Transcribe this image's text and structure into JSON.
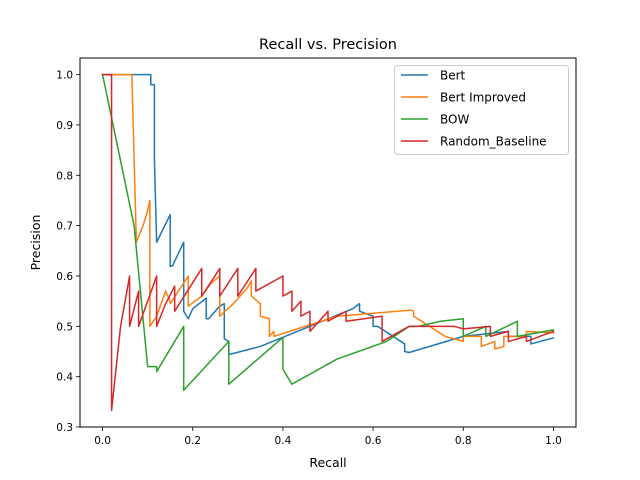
{
  "chart_data": {
    "type": "line",
    "title": "Recall vs. Precision",
    "xlabel": "Recall",
    "ylabel": "Precision",
    "xlim": [
      -0.05,
      1.05
    ],
    "ylim": [
      0.3,
      1.033
    ],
    "xticks": [
      0.0,
      0.2,
      0.4,
      0.6,
      0.8,
      1.0
    ],
    "xtick_labels": [
      "0.0",
      "0.2",
      "0.4",
      "0.6",
      "0.8",
      "1.0"
    ],
    "yticks": [
      0.3,
      0.4,
      0.5,
      0.6,
      0.7,
      0.8,
      0.9,
      1.0
    ],
    "ytick_labels": [
      "0.3",
      "0.4",
      "0.5",
      "0.6",
      "0.7",
      "0.8",
      "0.9",
      "1.0"
    ],
    "grid": false,
    "legend_position": "top-right",
    "series": [
      {
        "name": "Bert",
        "color": "#1f77b4",
        "x": [
          0.0,
          0.107,
          0.107,
          0.115,
          0.115,
          0.12,
          0.15,
          0.15,
          0.155,
          0.18,
          0.18,
          0.19,
          0.2,
          0.23,
          0.23,
          0.235,
          0.26,
          0.27,
          0.27,
          0.28,
          0.28,
          0.285,
          0.35,
          0.46,
          0.555,
          0.57,
          0.57,
          0.6,
          0.6,
          0.61,
          0.67,
          0.67,
          0.68,
          0.8,
          0.9,
          0.9,
          0.95,
          0.95,
          1.0
        ],
        "y": [
          1.0,
          1.0,
          0.98,
          0.98,
          0.833,
          0.667,
          0.722,
          0.619,
          0.62,
          0.667,
          0.53,
          0.515,
          0.535,
          0.556,
          0.515,
          0.515,
          0.54,
          0.545,
          0.475,
          0.47,
          0.445,
          0.445,
          0.46,
          0.5,
          0.535,
          0.545,
          0.53,
          0.52,
          0.5,
          0.5,
          0.465,
          0.45,
          0.448,
          0.48,
          0.49,
          0.48,
          0.48,
          0.465,
          0.477
        ]
      },
      {
        "name": "Bert Improved",
        "color": "#ff7f0e",
        "x": [
          0.0,
          0.065,
          0.065,
          0.075,
          0.09,
          0.1,
          0.105,
          0.105,
          0.12,
          0.14,
          0.15,
          0.15,
          0.19,
          0.19,
          0.22,
          0.24,
          0.26,
          0.26,
          0.29,
          0.32,
          0.33,
          0.33,
          0.35,
          0.35,
          0.37,
          0.37,
          0.38,
          0.38,
          0.52,
          0.52,
          0.68,
          0.685,
          0.69,
          0.69,
          0.76,
          0.8,
          0.8,
          0.84,
          0.84,
          0.87,
          0.87,
          0.89,
          0.89,
          0.94,
          0.94,
          1.0
        ],
        "y": [
          1.0,
          1.0,
          1.0,
          0.667,
          0.7,
          0.73,
          0.75,
          0.5,
          0.52,
          0.57,
          0.55,
          0.545,
          0.6,
          0.54,
          0.56,
          0.585,
          0.6,
          0.52,
          0.545,
          0.575,
          0.59,
          0.56,
          0.545,
          0.52,
          0.515,
          0.48,
          0.49,
          0.48,
          0.52,
          0.52,
          0.532,
          0.532,
          0.53,
          0.52,
          0.48,
          0.47,
          0.48,
          0.48,
          0.46,
          0.47,
          0.455,
          0.46,
          0.48,
          0.48,
          0.49,
          0.487
        ]
      },
      {
        "name": "BOW",
        "color": "#2ca02c",
        "x": [
          0.0,
          0.07,
          0.1,
          0.12,
          0.12,
          0.18,
          0.18,
          0.28,
          0.28,
          0.4,
          0.4,
          0.42,
          0.52,
          0.63,
          0.68,
          0.7,
          0.75,
          0.8,
          0.8,
          0.85,
          0.85,
          0.92,
          0.92,
          1.0
        ],
        "y": [
          1.0,
          0.7,
          0.42,
          0.42,
          0.41,
          0.5,
          0.373,
          0.47,
          0.385,
          0.478,
          0.415,
          0.385,
          0.435,
          0.47,
          0.5,
          0.5,
          0.51,
          0.515,
          0.48,
          0.5,
          0.48,
          0.51,
          0.48,
          0.493
        ]
      },
      {
        "name": "Random_Baseline",
        "color": "#d62728",
        "x": [
          0.0,
          0.02,
          0.02,
          0.02,
          0.04,
          0.06,
          0.06,
          0.08,
          0.08,
          0.12,
          0.12,
          0.14,
          0.16,
          0.16,
          0.22,
          0.22,
          0.26,
          0.26,
          0.3,
          0.3,
          0.34,
          0.34,
          0.4,
          0.4,
          0.42,
          0.42,
          0.44,
          0.44,
          0.46,
          0.46,
          0.5,
          0.5,
          0.54,
          0.54,
          0.62,
          0.62,
          0.68,
          0.72,
          0.78,
          0.8,
          0.86,
          0.86,
          0.9,
          0.9,
          0.94,
          0.94,
          1.0
        ],
        "y": [
          1.0,
          1.0,
          1.0,
          0.333,
          0.5,
          0.6,
          0.5,
          0.57,
          0.5,
          0.6,
          0.5,
          0.545,
          0.58,
          0.53,
          0.615,
          0.56,
          0.615,
          0.56,
          0.615,
          0.56,
          0.615,
          0.57,
          0.6,
          0.56,
          0.57,
          0.53,
          0.55,
          0.52,
          0.53,
          0.49,
          0.53,
          0.51,
          0.53,
          0.51,
          0.52,
          0.47,
          0.5,
          0.5,
          0.5,
          0.495,
          0.5,
          0.48,
          0.49,
          0.47,
          0.48,
          0.47,
          0.49
        ]
      }
    ]
  }
}
